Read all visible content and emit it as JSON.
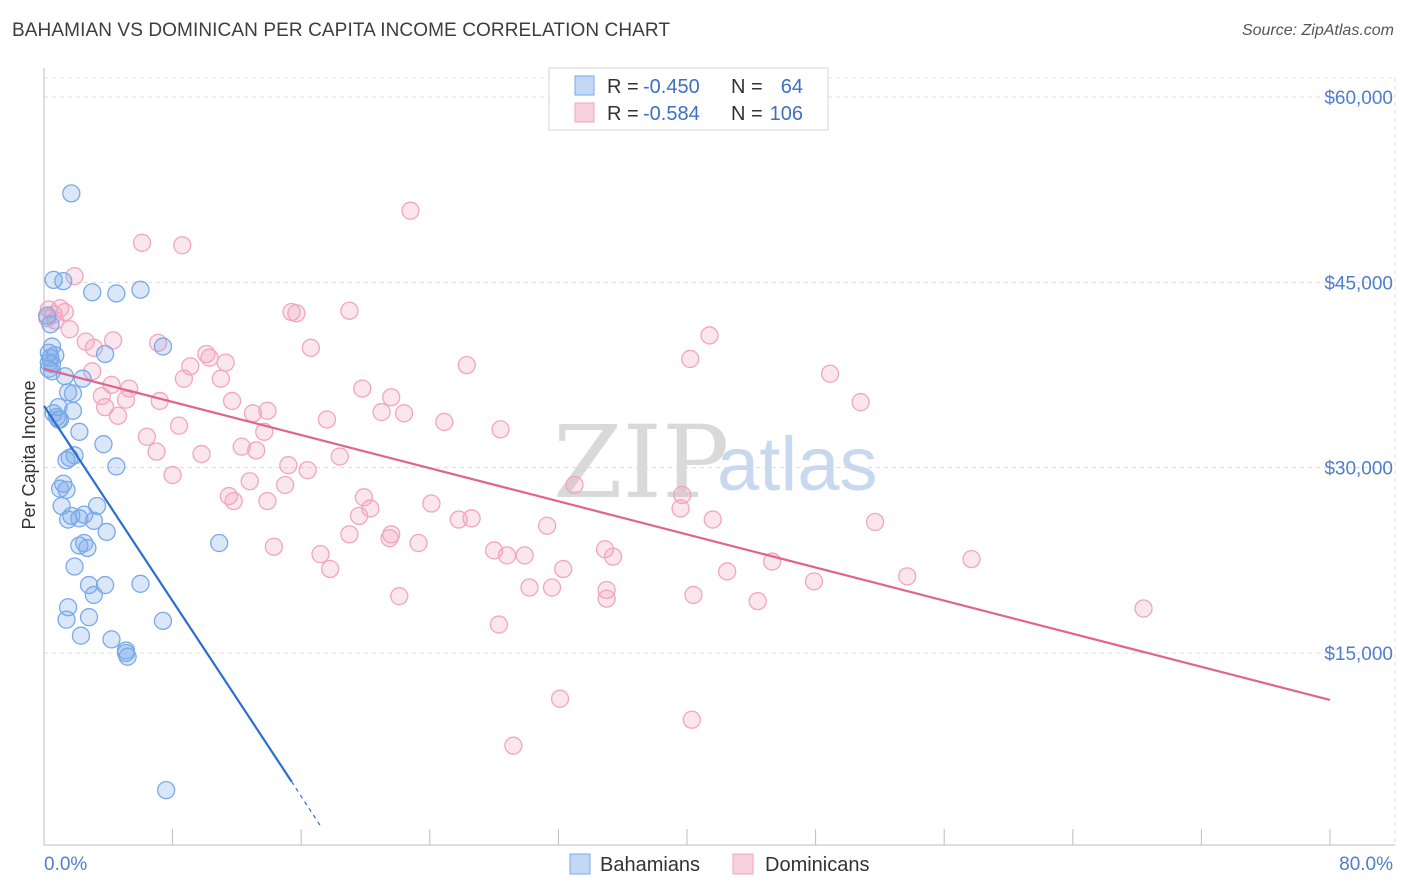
{
  "header": {
    "title": "BAHAMIAN VS DOMINICAN PER CAPITA INCOME CORRELATION CHART",
    "source": "Source: ZipAtlas.com"
  },
  "watermark": {
    "zip": "ZIP",
    "atlas": "atlas"
  },
  "colors": {
    "bahamian": "#7aaae8",
    "bahamian_line": "#2a6fcf",
    "dominican": "#f2a5bf",
    "dominican_line": "#e0648f",
    "axis_text": "#4f7ecb"
  },
  "stats": [
    {
      "series": "Bahamians",
      "r_label": "R =",
      "r_value": "-0.450",
      "n_label": "N =",
      "n_value": "64"
    },
    {
      "series": "Dominicans",
      "r_label": "R =",
      "r_value": "-0.584",
      "n_label": "N =",
      "n_value": "106"
    }
  ],
  "legend": [
    "Bahamians",
    "Dominicans"
  ],
  "chart_data": {
    "type": "scatter",
    "title": "BAHAMIAN VS DOMINICAN PER CAPITA INCOME CORRELATION CHART",
    "xlabel": "",
    "ylabel": "Per Capita Income",
    "xlim": [
      0,
      80
    ],
    "ylim": [
      0,
      62000
    ],
    "x_tick_labels": [
      "0.0%",
      "80.0%"
    ],
    "y_ticks": [
      15000,
      30000,
      45000,
      60000
    ],
    "y_tick_labels": [
      "$15,000",
      "$30,000",
      "$45,000",
      "$60,000"
    ],
    "grid": true,
    "series": [
      {
        "name": "Bahamians",
        "trend": {
          "x": [
            0,
            15.4
          ],
          "y": [
            35000,
            4600
          ]
        },
        "trend_dashed": {
          "x": [
            15.4,
            17.2
          ],
          "y": [
            4600,
            1000
          ]
        },
        "points": [
          [
            1.7,
            52200
          ],
          [
            0.6,
            45200
          ],
          [
            1.2,
            45100
          ],
          [
            3.0,
            44200
          ],
          [
            4.5,
            44100
          ],
          [
            6.0,
            44400
          ],
          [
            0.2,
            42300
          ],
          [
            0.4,
            41600
          ],
          [
            7.4,
            39800
          ],
          [
            0.3,
            39300
          ],
          [
            0.4,
            38900
          ],
          [
            0.7,
            39100
          ],
          [
            3.8,
            39200
          ],
          [
            0.5,
            38400
          ],
          [
            0.3,
            38000
          ],
          [
            0.5,
            37800
          ],
          [
            1.3,
            37400
          ],
          [
            2.4,
            37200
          ],
          [
            1.5,
            36100
          ],
          [
            1.8,
            36000
          ],
          [
            0.9,
            34900
          ],
          [
            0.6,
            34400
          ],
          [
            0.8,
            34100
          ],
          [
            0.9,
            33900
          ],
          [
            1.8,
            34600
          ],
          [
            2.2,
            32900
          ],
          [
            3.7,
            31900
          ],
          [
            1.9,
            31000
          ],
          [
            1.4,
            30600
          ],
          [
            4.5,
            30100
          ],
          [
            1.2,
            28700
          ],
          [
            1.0,
            28300
          ],
          [
            1.4,
            28200
          ],
          [
            1.1,
            26900
          ],
          [
            3.3,
            26900
          ],
          [
            1.7,
            26100
          ],
          [
            1.5,
            25800
          ],
          [
            2.2,
            25900
          ],
          [
            2.5,
            26200
          ],
          [
            3.1,
            25700
          ],
          [
            3.9,
            24800
          ],
          [
            2.2,
            23700
          ],
          [
            2.5,
            23900
          ],
          [
            2.7,
            23500
          ],
          [
            10.9,
            23900
          ],
          [
            1.9,
            22000
          ],
          [
            2.8,
            20500
          ],
          [
            3.8,
            20500
          ],
          [
            6.0,
            20600
          ],
          [
            3.1,
            19700
          ],
          [
            1.5,
            18700
          ],
          [
            1.4,
            17700
          ],
          [
            2.8,
            17900
          ],
          [
            7.4,
            17600
          ],
          [
            2.3,
            16400
          ],
          [
            4.2,
            16100
          ],
          [
            5.1,
            15200
          ],
          [
            5.1,
            15000
          ],
          [
            5.2,
            14700
          ],
          [
            7.6,
            3900
          ],
          [
            0.3,
            38500
          ],
          [
            0.5,
            39800
          ],
          [
            1.0,
            33900
          ],
          [
            1.6,
            30800
          ]
        ]
      },
      {
        "name": "Dominicans",
        "trend": {
          "x": [
            0,
            80
          ],
          "y": [
            38000,
            11200
          ]
        },
        "points": [
          [
            22.8,
            50800
          ],
          [
            6.1,
            48200
          ],
          [
            8.6,
            48000
          ],
          [
            1.9,
            45500
          ],
          [
            0.3,
            42800
          ],
          [
            1.0,
            42900
          ],
          [
            1.3,
            42600
          ],
          [
            0.2,
            42100
          ],
          [
            0.7,
            41900
          ],
          [
            0.6,
            42400
          ],
          [
            1.6,
            41200
          ],
          [
            15.4,
            42600
          ],
          [
            15.7,
            42500
          ],
          [
            19.0,
            42700
          ],
          [
            2.6,
            40200
          ],
          [
            4.3,
            40300
          ],
          [
            7.1,
            40100
          ],
          [
            3.1,
            39700
          ],
          [
            10.1,
            39200
          ],
          [
            10.3,
            38900
          ],
          [
            16.6,
            39700
          ],
          [
            41.4,
            40700
          ],
          [
            40.2,
            38800
          ],
          [
            3.0,
            37800
          ],
          [
            9.1,
            38200
          ],
          [
            11.3,
            38500
          ],
          [
            26.3,
            38300
          ],
          [
            48.9,
            37600
          ],
          [
            11.0,
            37200
          ],
          [
            4.2,
            36700
          ],
          [
            5.3,
            36400
          ],
          [
            8.7,
            37200
          ],
          [
            19.8,
            36400
          ],
          [
            21.6,
            35700
          ],
          [
            3.6,
            35800
          ],
          [
            5.1,
            35500
          ],
          [
            7.2,
            35400
          ],
          [
            11.7,
            35400
          ],
          [
            50.8,
            35300
          ],
          [
            3.8,
            34900
          ],
          [
            13.0,
            34400
          ],
          [
            13.9,
            34600
          ],
          [
            21.0,
            34500
          ],
          [
            22.4,
            34400
          ],
          [
            4.6,
            34200
          ],
          [
            17.6,
            33900
          ],
          [
            24.9,
            33700
          ],
          [
            8.4,
            33400
          ],
          [
            13.7,
            32900
          ],
          [
            28.4,
            33100
          ],
          [
            6.4,
            32500
          ],
          [
            12.3,
            31700
          ],
          [
            13.2,
            31400
          ],
          [
            7.0,
            31300
          ],
          [
            9.8,
            31100
          ],
          [
            18.4,
            30900
          ],
          [
            15.2,
            30200
          ],
          [
            16.4,
            29800
          ],
          [
            8.0,
            29400
          ],
          [
            12.8,
            28900
          ],
          [
            15.0,
            28600
          ],
          [
            33.0,
            28600
          ],
          [
            39.7,
            27800
          ],
          [
            11.5,
            27700
          ],
          [
            19.9,
            27600
          ],
          [
            11.8,
            27300
          ],
          [
            13.9,
            27300
          ],
          [
            24.1,
            27100
          ],
          [
            20.3,
            26700
          ],
          [
            39.6,
            26700
          ],
          [
            19.6,
            26100
          ],
          [
            25.8,
            25800
          ],
          [
            26.6,
            25900
          ],
          [
            41.6,
            25800
          ],
          [
            51.7,
            25600
          ],
          [
            31.3,
            25300
          ],
          [
            21.6,
            24600
          ],
          [
            19.0,
            24600
          ],
          [
            21.5,
            24300
          ],
          [
            23.3,
            23900
          ],
          [
            14.3,
            23600
          ],
          [
            28.0,
            23300
          ],
          [
            34.9,
            23400
          ],
          [
            17.2,
            23000
          ],
          [
            28.8,
            22900
          ],
          [
            29.9,
            22900
          ],
          [
            35.4,
            22800
          ],
          [
            45.3,
            22400
          ],
          [
            57.7,
            22600
          ],
          [
            32.3,
            21800
          ],
          [
            17.8,
            21800
          ],
          [
            42.5,
            21600
          ],
          [
            53.7,
            21200
          ],
          [
            47.9,
            20800
          ],
          [
            30.2,
            20300
          ],
          [
            31.6,
            20300
          ],
          [
            35.0,
            20100
          ],
          [
            40.4,
            19700
          ],
          [
            22.1,
            19600
          ],
          [
            44.4,
            19200
          ],
          [
            35.0,
            19400
          ],
          [
            68.4,
            18600
          ],
          [
            28.3,
            17300
          ],
          [
            32.1,
            11300
          ],
          [
            40.3,
            9600
          ],
          [
            29.2,
            7500
          ]
        ]
      }
    ]
  }
}
